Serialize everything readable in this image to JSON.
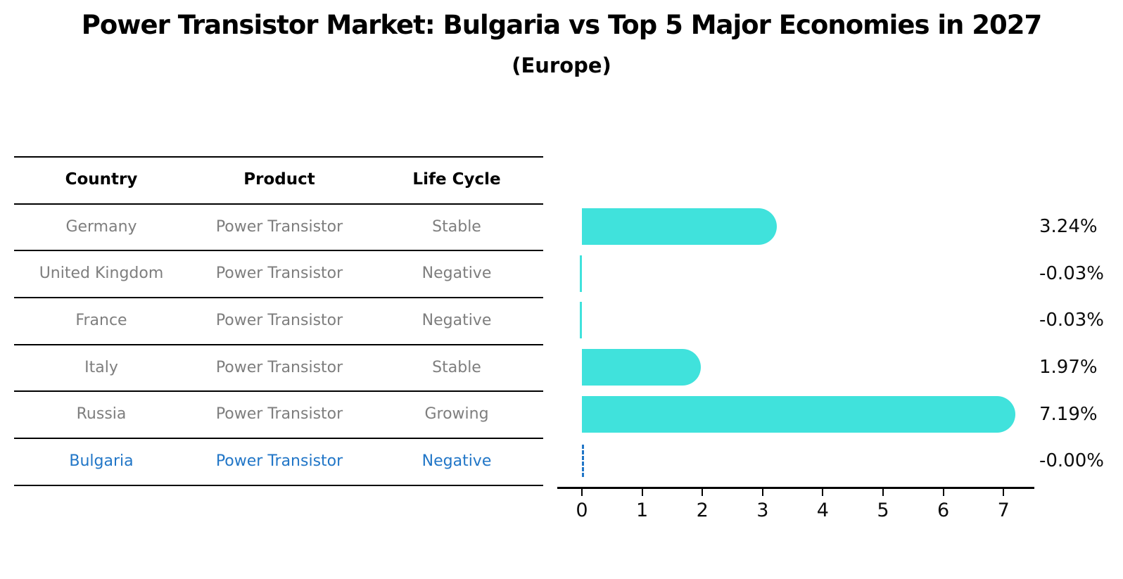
{
  "header": {
    "title": "Power Transistor Market: Bulgaria vs Top 5 Major Economies in 2027",
    "subtitle": "(Europe)"
  },
  "table": {
    "columns": [
      "Country",
      "Product",
      "Life Cycle"
    ],
    "rows": [
      {
        "country": "Germany",
        "product": "Power Transistor",
        "life_cycle": "Stable",
        "highlight": false
      },
      {
        "country": "United Kingdom",
        "product": "Power Transistor",
        "life_cycle": "Negative",
        "highlight": false
      },
      {
        "country": "France",
        "product": "Power Transistor",
        "life_cycle": "Negative",
        "highlight": false
      },
      {
        "country": "Italy",
        "product": "Power Transistor",
        "life_cycle": "Stable",
        "highlight": false
      },
      {
        "country": "Russia",
        "product": "Power Transistor",
        "life_cycle": "Growing",
        "highlight": false
      },
      {
        "country": "Bulgaria",
        "product": "Power Transistor",
        "life_cycle": "Negative",
        "highlight": true
      }
    ]
  },
  "chart_data": {
    "type": "bar",
    "orientation": "horizontal",
    "title": "Power Transistor Market: Bulgaria vs Top 5 Major Economies in 2027",
    "subtitle": "(Europe)",
    "categories": [
      "Germany",
      "United Kingdom",
      "France",
      "Italy",
      "Russia",
      "Bulgaria"
    ],
    "values": [
      3.24,
      -0.03,
      -0.03,
      1.97,
      7.19,
      -0.0
    ],
    "value_labels": [
      "3.24%",
      "-0.03%",
      "-0.03%",
      "1.97%",
      "7.19%",
      "-0.00%"
    ],
    "x_ticks": [
      "0",
      "1",
      "2",
      "3",
      "4",
      "5",
      "6",
      "7"
    ],
    "xlim": [
      -0.4,
      7.55
    ],
    "xlabel": "",
    "ylabel": "",
    "grid": false,
    "legend": "none",
    "bar_color": "#40E2DC",
    "highlight_color": "#2176C7",
    "text_gray": "#7e7e7e",
    "highlight_index": 5,
    "highlight_style": "dashed-outline-zero-bar"
  }
}
